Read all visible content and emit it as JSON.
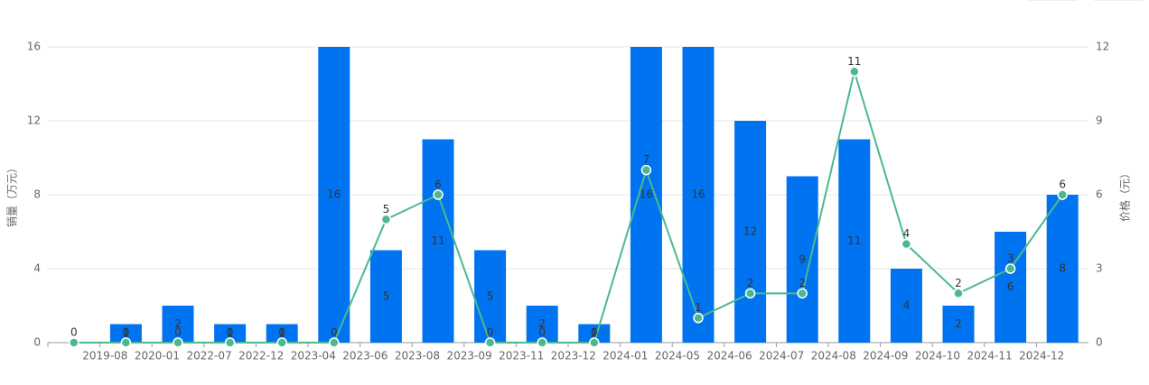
{
  "chart_data": {
    "type": "bar-line",
    "categories": [
      null,
      "2019-08",
      "2020-01",
      "2022-07",
      "2022-12",
      "2023-04",
      "2023-06",
      "2023-08",
      "2023-09",
      "2023-11",
      "2023-12",
      "2024-01",
      "2024-05",
      "2024-06",
      "2024-07",
      "2024-08",
      "2024-09",
      "2024-10",
      "2024-11",
      "2024-12"
    ],
    "series": [
      {
        "name": "销量",
        "kind": "bar",
        "color": "#0073f0",
        "values": [
          0,
          1,
          2,
          1,
          1,
          16,
          5,
          11,
          5,
          2,
          1,
          16,
          16,
          12,
          9,
          11,
          4,
          2,
          6,
          8
        ]
      },
      {
        "name": "价格",
        "kind": "line",
        "axis": "y2",
        "color": "#4cb88f",
        "values": [
          0,
          0,
          0,
          0,
          0,
          0,
          5,
          6,
          0,
          0,
          0,
          7,
          1,
          2,
          2,
          11,
          4,
          2,
          3,
          6
        ]
      }
    ],
    "ylabel": "销量（万元）",
    "y2label": "价格（元）",
    "ylim": [
      0,
      16
    ],
    "yticks": [
      0,
      4,
      8,
      12,
      16
    ],
    "y2lim": [
      0,
      12
    ],
    "y2ticks": [
      0,
      3,
      6,
      9,
      12
    ],
    "grid": true
  }
}
